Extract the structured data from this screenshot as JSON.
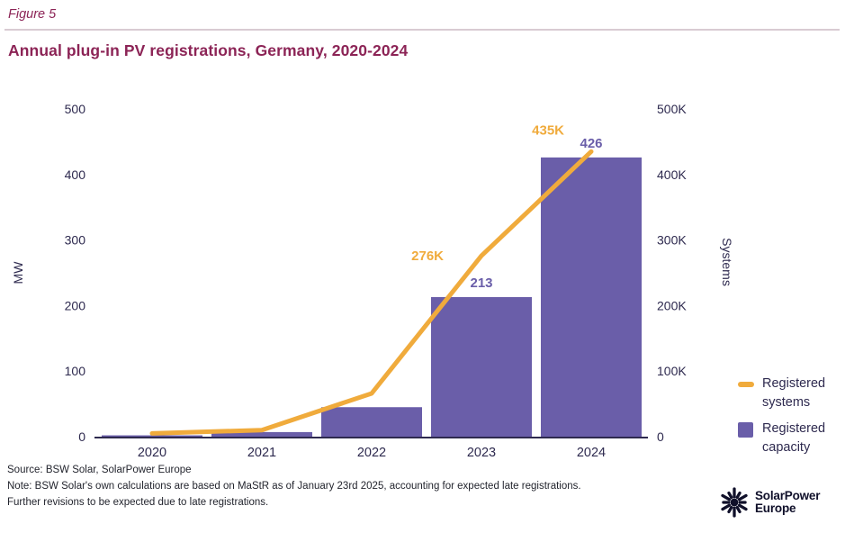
{
  "figure_label": "Figure 5",
  "title": "Annual plug-in PV registrations, Germany, 2020-2024",
  "colors": {
    "accent_berry": "#8c2456",
    "bar_purple": "#6a5ea9",
    "line_yellow": "#f0ab3c",
    "axis_text": "#2e2a4f",
    "separator": "#d9cbd2",
    "note_text": "#23252e",
    "logo_navy": "#10102a"
  },
  "chart_data": {
    "type": "bar+line combo",
    "categories": [
      "2020",
      "2021",
      "2022",
      "2023",
      "2024"
    ],
    "series": [
      {
        "name": "Registered capacity",
        "type": "bar",
        "axis": "left",
        "values": [
          2,
          7,
          45,
          213,
          426
        ],
        "point_labels": [
          "",
          "",
          "",
          "213",
          "426"
        ],
        "color": "#6a5ea9"
      },
      {
        "name": "Registered systems",
        "type": "line",
        "axis": "right",
        "values": [
          5000,
          10000,
          66000,
          276000,
          435000
        ],
        "point_labels": [
          "",
          "",
          "",
          "276K",
          "435K"
        ],
        "color": "#f0ab3c"
      }
    ],
    "left_axis": {
      "label": "MW",
      "min": 0,
      "max": 500,
      "ticks": [
        "0",
        "100",
        "200",
        "300",
        "400",
        "500"
      ]
    },
    "right_axis": {
      "label": "Systems",
      "min": 0,
      "max": 500000,
      "ticks": [
        "0",
        "100K",
        "200K",
        "300K",
        "400K",
        "500K"
      ]
    },
    "grid": false,
    "legend_position": "right",
    "legend": [
      {
        "label": "Registered systems",
        "swatch": "line",
        "color": "#f0ab3c"
      },
      {
        "label": "Registered capacity",
        "swatch": "square",
        "color": "#6a5ea9"
      }
    ]
  },
  "footer": {
    "source": "Source: BSW Solar, SolarPower Europe",
    "note_line1": "Note:  BSW Solar's own calculations are based on MaStR as of January 23rd 2025, accounting for expected late registrations.",
    "note_line2": "Further revisions to be expected due to late registrations."
  },
  "logo": {
    "icon": "sun-burst-icon",
    "line1": "SolarPower",
    "line2": "Europe"
  }
}
